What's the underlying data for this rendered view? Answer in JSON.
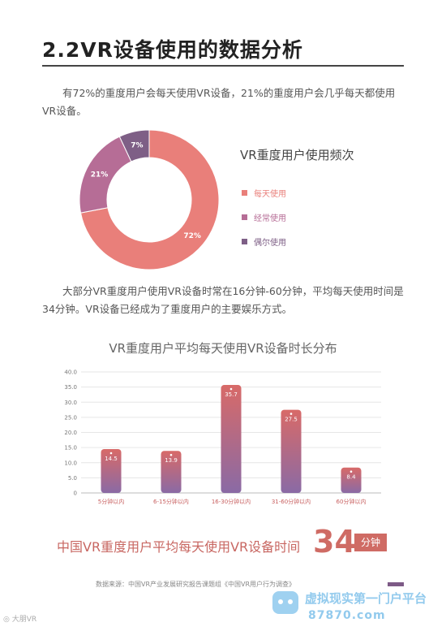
{
  "section": {
    "title": "2.2VR设备使用的数据分析",
    "paragraph1": "有72%的重度用户会每天使用VR设备，21%的重度用户会几乎每天都使用VR设备。",
    "paragraph2": "大部分VR重度用户使用VR设备时常在16分钟-60分钟，平均每天使用时间是34分钟。VR设备已经成为了重度用户的主要娱乐方式。"
  },
  "colors": {
    "daily": "#e97f7a",
    "often": "#b66d96",
    "occasional": "#7e5f86",
    "bar_gradient_top": "#d86a68",
    "bar_gradient_bottom": "#8a6aa5"
  },
  "chart_data": [
    {
      "type": "pie",
      "title": "VR重度用户使用频次",
      "donut": true,
      "labels": [
        "每天使用",
        "经常使用",
        "偶尔使用"
      ],
      "values": [
        72,
        21,
        7
      ],
      "value_labels": [
        "72%",
        "21%",
        "7%"
      ],
      "colors": [
        "#e97f7a",
        "#b66d96",
        "#7e5f86"
      ],
      "legend": "right"
    },
    {
      "type": "bar",
      "title": "VR重度用户平均每天使用VR设备时长分布",
      "categories": [
        "5分钟以内",
        "6-15分钟以内",
        "16-30分钟以内",
        "31-60分钟以内",
        "60分钟以内"
      ],
      "values": [
        14.5,
        13.9,
        35.7,
        27.5,
        8.4
      ],
      "value_labels": [
        "14.5",
        "13.9",
        "35.7",
        "27.5",
        "8.4"
      ],
      "ylim": [
        0,
        40
      ],
      "yticks": [
        0,
        5.0,
        10.0,
        15.0,
        20.0,
        25.0,
        30.0,
        35.0,
        40.0
      ],
      "ytick_labels": [
        "0",
        "5.0",
        "10.0",
        "15.0",
        "20.0",
        "25.0",
        "30.0",
        "35.0",
        "40.0"
      ],
      "grid": true
    }
  ],
  "summary": {
    "text": "中国VR重度用户平均每天使用VR设备时间",
    "number": "34",
    "unit": "分钟"
  },
  "source": "数据来源：中国VR产业发展研究报告课题组《中国VR用户行为调查》",
  "watermark": {
    "weibo": "大朋VR",
    "site_name": "虚拟现实第一门户平台",
    "site_url": "87870.com"
  }
}
